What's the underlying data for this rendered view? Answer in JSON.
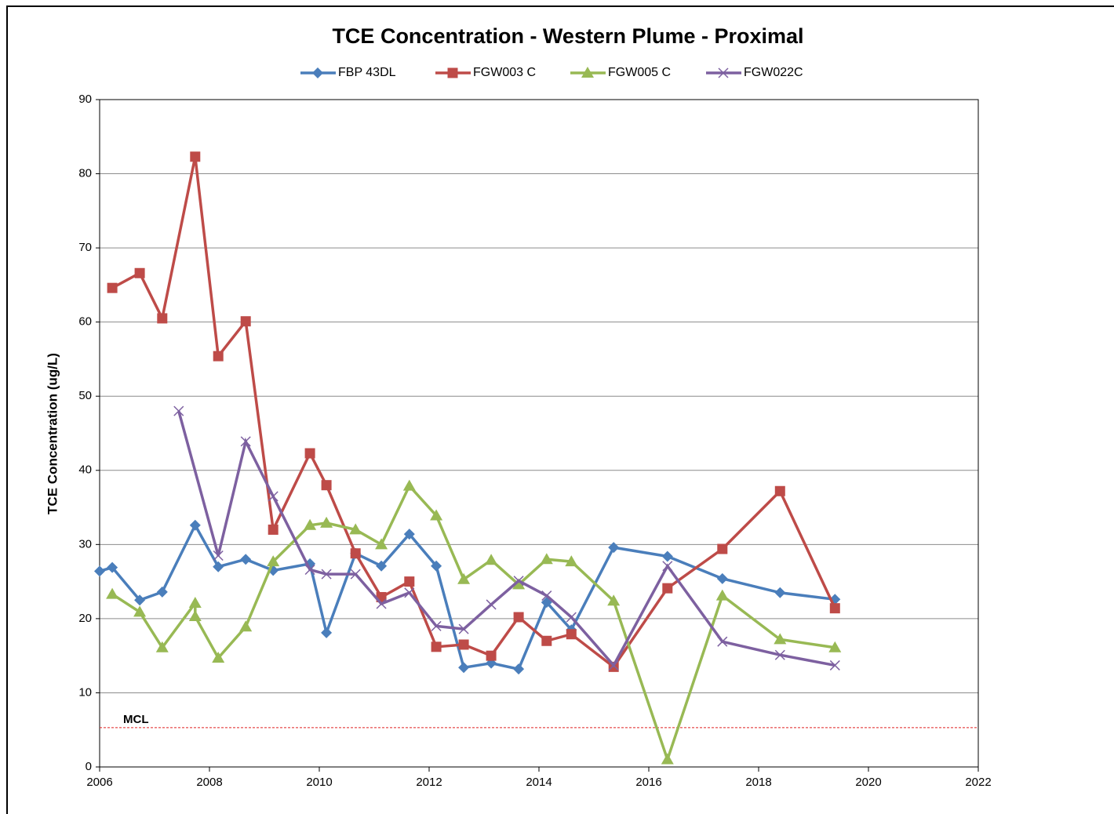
{
  "chart_data": {
    "type": "line",
    "title": "TCE Concentration - Western Plume - Proximal",
    "y_label": "TCE Concentration (ug/L)",
    "xlim": [
      2006,
      2022
    ],
    "xticks": [
      2006,
      2008,
      2010,
      2012,
      2014,
      2016,
      2018,
      2020,
      2022
    ],
    "ylim": [
      0,
      90
    ],
    "yticks": [
      0,
      10,
      20,
      30,
      40,
      50,
      60,
      70,
      80,
      90
    ],
    "grid": true,
    "legend": "top",
    "reference_line": {
      "label": "MCL",
      "value": 5.3,
      "color": "#e02020"
    },
    "series": [
      {
        "name": "FBP 43DL",
        "color": "#4a7ebb",
        "marker": "diamond",
        "x": [
          2006.0,
          2006.23,
          2006.73,
          2007.14,
          2007.74,
          2008.16,
          2008.66,
          2009.16,
          2009.83,
          2010.13,
          2010.66,
          2011.13,
          2011.64,
          2012.13,
          2012.63,
          2013.13,
          2013.63,
          2014.14,
          2014.59,
          2015.36,
          2016.34,
          2017.34,
          2018.39,
          2019.39
        ],
        "values": [
          26.4,
          26.9,
          22.5,
          23.6,
          32.6,
          27.0,
          28.0,
          26.5,
          27.4,
          18.1,
          28.8,
          27.1,
          31.4,
          27.1,
          13.4,
          14.0,
          13.2,
          22.2,
          18.5,
          29.6,
          28.4,
          25.4,
          23.5,
          22.6
        ]
      },
      {
        "name": "FGW003 C",
        "color": "#be4b48",
        "marker": "square",
        "x": [
          2006.23,
          2006.73,
          2007.14,
          2007.74,
          2008.16,
          2008.66,
          2009.16,
          2009.83,
          2010.13,
          2010.66,
          2011.13,
          2011.64,
          2012.13,
          2012.63,
          2013.13,
          2013.63,
          2014.14,
          2014.59,
          2015.36,
          2016.34,
          2017.34,
          2018.39,
          2019.39
        ],
        "values": [
          64.6,
          66.6,
          60.5,
          82.3,
          55.4,
          60.1,
          32.0,
          42.3,
          38.0,
          28.8,
          22.9,
          25.0,
          16.2,
          16.5,
          15.0,
          20.2,
          17.0,
          17.9,
          13.5,
          24.1,
          29.4,
          37.2,
          21.4
        ]
      },
      {
        "name": "FGW005 C",
        "color": "#98b954",
        "marker": "triangle",
        "x": [
          2006.23,
          2006.73,
          2007.14,
          2007.74,
          2007.74,
          2008.16,
          2008.66,
          2009.16,
          2009.83,
          2010.13,
          2010.66,
          2011.13,
          2011.64,
          2012.13,
          2012.63,
          2013.13,
          2013.63,
          2014.14,
          2014.59,
          2015.36,
          2016.34,
          2017.34,
          2018.39,
          2019.39
        ],
        "values": [
          23.3,
          20.9,
          16.1,
          22.1,
          20.3,
          14.7,
          18.9,
          27.7,
          32.6,
          32.9,
          32.0,
          30.0,
          37.9,
          33.9,
          25.3,
          27.9,
          24.6,
          28.0,
          27.7,
          22.4,
          1.0,
          23.1,
          17.2,
          16.1
        ]
      },
      {
        "name": "FGW022C",
        "color": "#7d60a0",
        "marker": "x",
        "x": [
          2007.44,
          2008.16,
          2008.66,
          2009.16,
          2009.83,
          2010.13,
          2010.66,
          2011.13,
          2011.64,
          2012.13,
          2012.63,
          2013.13,
          2013.63,
          2014.14,
          2014.59,
          2015.36,
          2016.34,
          2017.34,
          2018.39,
          2019.39
        ],
        "values": [
          48.0,
          28.5,
          43.9,
          36.5,
          26.6,
          26.0,
          26.0,
          22.0,
          23.5,
          19.0,
          18.6,
          21.9,
          25.1,
          23.1,
          20.2,
          13.7,
          27.1,
          16.9,
          15.1,
          13.7
        ]
      }
    ]
  }
}
